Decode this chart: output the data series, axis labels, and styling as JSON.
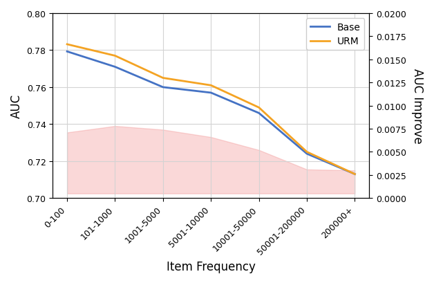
{
  "categories": [
    "0-100",
    "101-1000",
    "1001-5000",
    "5001-10000",
    "10001-50000",
    "50001-200000",
    "200000+"
  ],
  "base_values": [
    0.7793,
    0.771,
    0.76,
    0.757,
    0.746,
    0.724,
    0.713
  ],
  "urm_values": [
    0.7832,
    0.777,
    0.765,
    0.761,
    0.749,
    0.725,
    0.713
  ],
  "fill_upper": [
    0.7355,
    0.739,
    0.737,
    0.733,
    0.726,
    0.7155,
    0.715
  ],
  "fill_lower": [
    0.7025,
    0.7025,
    0.7025,
    0.7025,
    0.7025,
    0.7025,
    0.7025
  ],
  "base_color": "#4472C4",
  "urm_color": "#F4A323",
  "fill_color": "#F08080",
  "fill_alpha": 0.3,
  "left_ylim": [
    0.7,
    0.8
  ],
  "right_ylim": [
    0.0,
    0.02
  ],
  "left_yticks": [
    0.7,
    0.72,
    0.74,
    0.76,
    0.78,
    0.8
  ],
  "right_yticks": [
    0.0,
    0.0025,
    0.005,
    0.0075,
    0.01,
    0.0125,
    0.015,
    0.0175,
    0.02
  ],
  "xlabel": "Item Frequency",
  "ylabel_left": "AUC",
  "ylabel_right": "AUC Improve",
  "legend_labels": [
    "Base",
    "URM"
  ],
  "line_width": 2.0
}
